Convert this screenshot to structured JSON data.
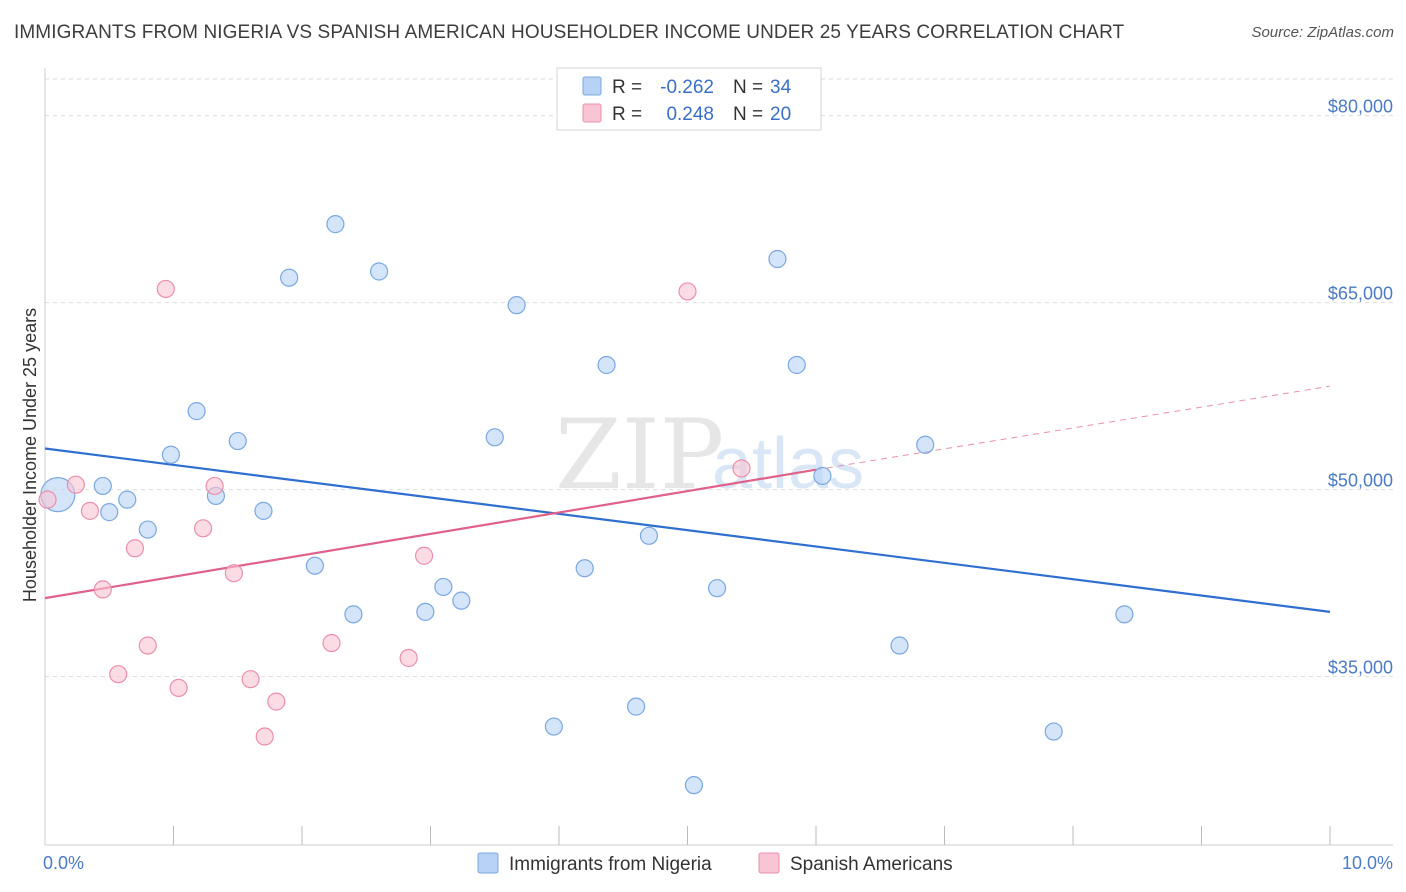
{
  "title": "IMMIGRANTS FROM NIGERIA VS SPANISH AMERICAN HOUSEHOLDER INCOME UNDER 25 YEARS CORRELATION CHART",
  "source": "Source: ZipAtlas.com",
  "watermark": {
    "zip": "ZIP",
    "atlas": "atlas"
  },
  "colors": {
    "nigeria_fill": "#b8d2f5",
    "nigeria_stroke": "#7aa8e0",
    "nigeria_line": "#2f6fcf",
    "spanish_fill": "#f9c4d4",
    "spanish_stroke": "#ec8fab",
    "spanish_line": "#e0628a",
    "tick_text": "#4a7bc4",
    "grid": "#dddddd"
  },
  "legend_top": {
    "rows": [
      {
        "r_label": "R =",
        "r_value": "-0.262",
        "n_label": "N =",
        "n_value": "34"
      },
      {
        "r_label": "R =",
        "r_value": "0.248",
        "n_label": "N =",
        "n_value": "20"
      }
    ]
  },
  "legend_bottom": {
    "items": [
      "Immigrants from Nigeria",
      "Spanish Americans"
    ]
  },
  "chart_data": {
    "type": "scatter",
    "xlabel": "",
    "ylabel": "Householder Income Under 25 years",
    "xlim": [
      0,
      10
    ],
    "ylim": [
      21500,
      83500
    ],
    "x_tick_labels": [
      {
        "value": 0,
        "label": "0.0%"
      },
      {
        "value": 10,
        "label": "10.0%"
      }
    ],
    "x_minor_ticks": [
      1,
      2,
      3,
      4,
      5,
      6,
      7,
      8,
      9,
      10
    ],
    "y_ticks": [
      {
        "value": 35000,
        "label": "$35,000"
      },
      {
        "value": 50000,
        "label": "$50,000"
      },
      {
        "value": 65000,
        "label": "$65,000"
      },
      {
        "value": 80000,
        "label": "$80,000"
      }
    ],
    "grid": true,
    "legend_position": "top-center",
    "series": [
      {
        "name": "Immigrants from Nigeria",
        "r": -0.262,
        "n": 34,
        "trend": {
          "x": [
            0,
            10
          ],
          "y": [
            53300,
            40200
          ]
        },
        "points": [
          {
            "x": 0.1,
            "y": 49600,
            "big": true
          },
          {
            "x": 0.5,
            "y": 48200
          },
          {
            "x": 0.45,
            "y": 50300
          },
          {
            "x": 0.64,
            "y": 49200
          },
          {
            "x": 0.8,
            "y": 46800
          },
          {
            "x": 0.98,
            "y": 52800
          },
          {
            "x": 1.18,
            "y": 56300
          },
          {
            "x": 1.33,
            "y": 49500
          },
          {
            "x": 1.5,
            "y": 53900
          },
          {
            "x": 1.7,
            "y": 48300
          },
          {
            "x": 1.9,
            "y": 67000
          },
          {
            "x": 2.1,
            "y": 43900
          },
          {
            "x": 2.26,
            "y": 71300
          },
          {
            "x": 2.4,
            "y": 40000
          },
          {
            "x": 2.6,
            "y": 67500
          },
          {
            "x": 2.96,
            "y": 40200
          },
          {
            "x": 3.1,
            "y": 42200
          },
          {
            "x": 3.24,
            "y": 41100
          },
          {
            "x": 3.5,
            "y": 54200
          },
          {
            "x": 3.67,
            "y": 64800
          },
          {
            "x": 3.96,
            "y": 31000
          },
          {
            "x": 4.2,
            "y": 43700
          },
          {
            "x": 4.37,
            "y": 60000
          },
          {
            "x": 4.6,
            "y": 32600
          },
          {
            "x": 4.7,
            "y": 46300
          },
          {
            "x": 5.05,
            "y": 26300
          },
          {
            "x": 5.23,
            "y": 42100
          },
          {
            "x": 5.7,
            "y": 68500
          },
          {
            "x": 5.85,
            "y": 60000
          },
          {
            "x": 6.05,
            "y": 51100
          },
          {
            "x": 6.65,
            "y": 37500
          },
          {
            "x": 6.85,
            "y": 53600
          },
          {
            "x": 7.85,
            "y": 30600
          },
          {
            "x": 8.4,
            "y": 40000
          }
        ]
      },
      {
        "name": "Spanish Americans",
        "r": 0.248,
        "n": 20,
        "trend": {
          "x": [
            0,
            6.0
          ],
          "y": [
            41300,
            51600
          ]
        },
        "trend_ext": {
          "x": [
            6.0,
            10
          ],
          "y": [
            51600,
            58300
          ]
        },
        "points": [
          {
            "x": 0.02,
            "y": 49200
          },
          {
            "x": 0.24,
            "y": 50400
          },
          {
            "x": 0.35,
            "y": 48300
          },
          {
            "x": 0.45,
            "y": 42000
          },
          {
            "x": 0.57,
            "y": 35200
          },
          {
            "x": 0.7,
            "y": 45300
          },
          {
            "x": 0.8,
            "y": 37500
          },
          {
            "x": 0.94,
            "y": 66100
          },
          {
            "x": 1.04,
            "y": 34100
          },
          {
            "x": 1.23,
            "y": 46900
          },
          {
            "x": 1.32,
            "y": 50300
          },
          {
            "x": 1.47,
            "y": 43300
          },
          {
            "x": 1.6,
            "y": 34800
          },
          {
            "x": 1.71,
            "y": 30200
          },
          {
            "x": 1.8,
            "y": 33000
          },
          {
            "x": 2.23,
            "y": 37700
          },
          {
            "x": 2.83,
            "y": 36500
          },
          {
            "x": 2.95,
            "y": 44700
          },
          {
            "x": 5.0,
            "y": 65900
          },
          {
            "x": 5.42,
            "y": 51700
          }
        ]
      }
    ]
  }
}
